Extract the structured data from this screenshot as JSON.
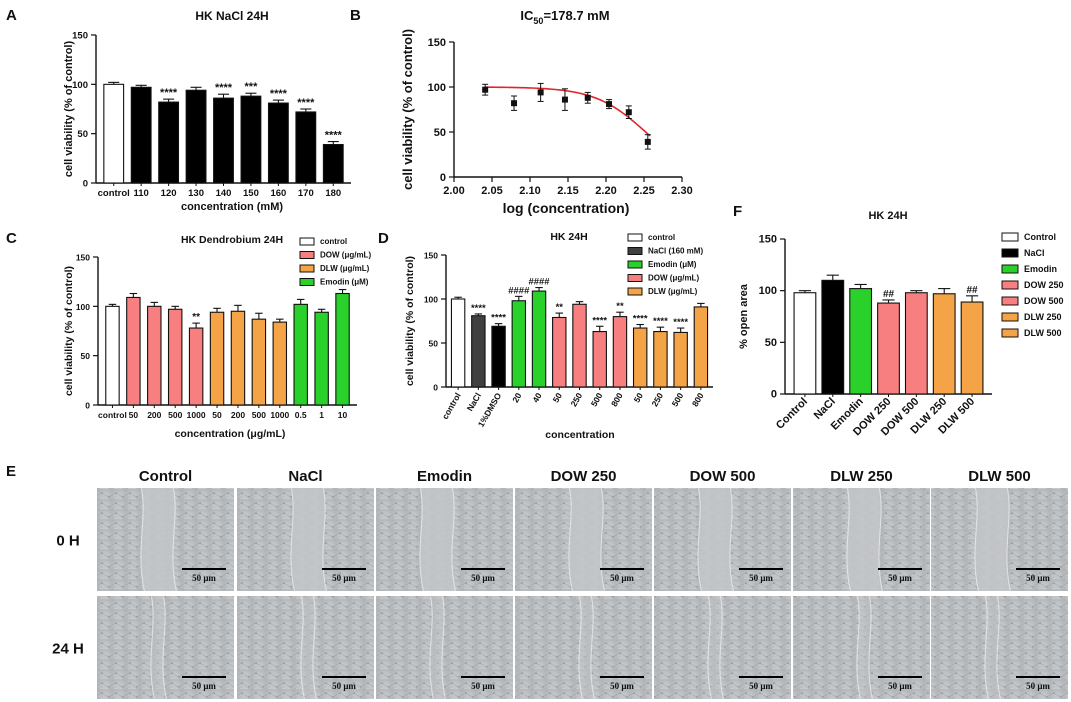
{
  "panels": {
    "A": "A",
    "B": "B",
    "C": "C",
    "D": "D",
    "E": "E",
    "F": "F"
  },
  "chart_data": [
    {
      "id": "A",
      "type": "bar",
      "title": "HK NaCl 24H",
      "xlabel": "concentration (mM)",
      "ylabel": "cell viability (% of control)",
      "ylim": [
        0,
        150
      ],
      "yticks": [
        0,
        50,
        100,
        150
      ],
      "categories": [
        "control",
        "110",
        "120",
        "130",
        "140",
        "150",
        "160",
        "170",
        "180"
      ],
      "values": [
        100,
        97,
        82,
        94,
        86,
        88,
        81,
        72,
        39
      ],
      "errors": [
        2,
        2,
        3,
        3,
        4,
        3,
        3,
        3,
        3
      ],
      "fills": [
        "#ffffff",
        "#000000",
        "#000000",
        "#000000",
        "#000000",
        "#000000",
        "#000000",
        "#000000",
        "#000000"
      ],
      "significance": [
        "",
        "",
        "****",
        "",
        "****",
        "***",
        "****",
        "****",
        "****"
      ]
    },
    {
      "id": "B",
      "type": "scatter",
      "title": "IC",
      "title_sub": "50",
      "title_rest": "=178.7 mM",
      "xlabel": "log (concentration)",
      "ylabel": "cell viability (% of control)",
      "xlim": [
        2.0,
        2.3
      ],
      "ylim": [
        0,
        150
      ],
      "xticks": [
        "2.00",
        "2.05",
        "2.10",
        "2.15",
        "2.20",
        "2.25",
        "2.30"
      ],
      "xtick_values": [
        2.0,
        2.05,
        2.1,
        2.15,
        2.2,
        2.25,
        2.3
      ],
      "yticks": [
        0,
        50,
        100,
        150
      ],
      "points": [
        {
          "x": 2.041,
          "y": 97,
          "err": 6
        },
        {
          "x": 2.079,
          "y": 82,
          "err": 8
        },
        {
          "x": 2.114,
          "y": 94,
          "err": 10
        },
        {
          "x": 2.146,
          "y": 86,
          "err": 12
        },
        {
          "x": 2.176,
          "y": 88,
          "err": 6
        },
        {
          "x": 2.204,
          "y": 81,
          "err": 5
        },
        {
          "x": 2.23,
          "y": 72,
          "err": 7
        },
        {
          "x": 2.255,
          "y": 39,
          "err": 8
        }
      ],
      "fit": {
        "top": 100,
        "bottom": 0,
        "log_ic50": 2.2522,
        "hill": 13,
        "x_range": [
          2.041,
          2.258
        ],
        "color": "#e0252a"
      }
    },
    {
      "id": "C",
      "type": "bar",
      "title": "HK Dendrobium 24H",
      "xlabel": "concentration (μg/mL)",
      "ylabel": "cell viability (% of control)",
      "ylim": [
        0,
        150
      ],
      "yticks": [
        0,
        50,
        100,
        150
      ],
      "categories": [
        "control",
        "50",
        "200",
        "500",
        "1000",
        "50",
        "200",
        "500",
        "1000",
        "0.5",
        "1",
        "10"
      ],
      "values": [
        100,
        109,
        100,
        97,
        78,
        94,
        95,
        87,
        84,
        102,
        94,
        113
      ],
      "errors": [
        2,
        4,
        4,
        3,
        5,
        4,
        6,
        6,
        3,
        5,
        3,
        4
      ],
      "fills": [
        "#ffffff",
        "#f77f7f",
        "#f77f7f",
        "#f77f7f",
        "#f77f7f",
        "#f5a347",
        "#f5a347",
        "#f5a347",
        "#f5a347",
        "#2ad12a",
        "#2ad12a",
        "#2ad12a"
      ],
      "significance": [
        "",
        "",
        "",
        "",
        "**",
        "",
        "",
        "",
        "",
        "",
        "",
        ""
      ],
      "legend": [
        {
          "label": "control",
          "color": "#ffffff"
        },
        {
          "label": "DOW (μg/mL)",
          "color": "#f77f7f"
        },
        {
          "label": "DLW (μg/mL)",
          "color": "#f5a347"
        },
        {
          "label": "Emodin (μM)",
          "color": "#2ad12a"
        }
      ]
    },
    {
      "id": "D",
      "type": "bar",
      "title": "HK 24H",
      "xlabel": "concentration",
      "ylabel": "cell viability (% of control)",
      "ylim": [
        0,
        150
      ],
      "yticks": [
        0,
        50,
        100,
        150
      ],
      "categories": [
        "control",
        "NaCl",
        "1%DMSO",
        "20",
        "40",
        "50",
        "250",
        "500",
        "800",
        "50",
        "250",
        "500",
        "800"
      ],
      "values": [
        100,
        81,
        69,
        98,
        109,
        79,
        94,
        63,
        80,
        67,
        63,
        62,
        91
      ],
      "errors": [
        2,
        2,
        3,
        5,
        4,
        5,
        3,
        6,
        5,
        4,
        5,
        5,
        4
      ],
      "fills": [
        "#ffffff",
        "#404040",
        "#000000",
        "#2ad12a",
        "#2ad12a",
        "#f77f7f",
        "#f77f7f",
        "#f77f7f",
        "#f77f7f",
        "#f5a347",
        "#f5a347",
        "#f5a347",
        "#f5a347"
      ],
      "significance": [
        "",
        "****",
        "****",
        "####",
        "####",
        "**",
        "",
        "****",
        "**",
        "****",
        "****",
        "****",
        ""
      ],
      "legend": [
        {
          "label": "control",
          "color": "#ffffff"
        },
        {
          "label": "NaCl (160 mM)",
          "color": "#404040"
        },
        {
          "label": "Emodin (μM)",
          "color": "#2ad12a"
        },
        {
          "label": "DOW (μg/mL)",
          "color": "#f77f7f"
        },
        {
          "label": "DLW (μg/mL)",
          "color": "#f5a347"
        }
      ]
    },
    {
      "id": "F",
      "type": "bar",
      "title": "HK 24H",
      "xlabel": "",
      "ylabel": "% open area",
      "ylim": [
        0,
        150
      ],
      "yticks": [
        0,
        50,
        100,
        150
      ],
      "categories": [
        "Control",
        "NaCl",
        "Emodin",
        "DOW 250",
        "DOW 500",
        "DLW 250",
        "DLW 500"
      ],
      "values": [
        98,
        110,
        102,
        88,
        98,
        97,
        89
      ],
      "errors": [
        2,
        5,
        4,
        3,
        2,
        5,
        6
      ],
      "fills": [
        "#ffffff",
        "#000000",
        "#2ad12a",
        "#f77f7f",
        "#f77f7f",
        "#f5a347",
        "#f5a347"
      ],
      "significance": [
        "",
        "",
        "",
        "##",
        "",
        "",
        "##"
      ],
      "legend": [
        {
          "label": "Control",
          "color": "#ffffff"
        },
        {
          "label": "NaCl",
          "color": "#000000"
        },
        {
          "label": "Emodin",
          "color": "#2ad12a"
        },
        {
          "label": "DOW 250",
          "color": "#f77f7f"
        },
        {
          "label": "DOW 500",
          "color": "#f77f7f"
        },
        {
          "label": "DLW 250",
          "color": "#f5a347"
        },
        {
          "label": "DLW 500",
          "color": "#f5a347"
        }
      ]
    }
  ],
  "micrographs": {
    "columns": [
      "Control",
      "NaCl",
      "Emodin",
      "DOW 250",
      "DOW 500",
      "DLW 250",
      "DLW 500"
    ],
    "rows": [
      "0 H",
      "24 H"
    ],
    "scale_bar_label": "50 μm"
  }
}
